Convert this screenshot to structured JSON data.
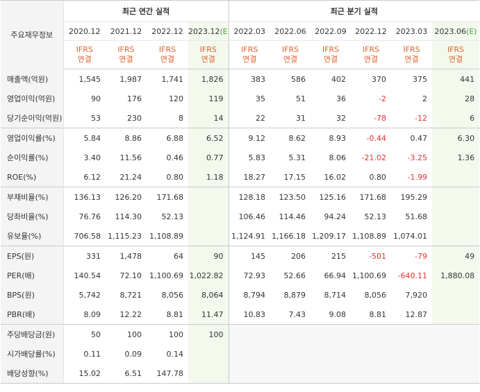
{
  "header": {
    "corner_label": "주요재무정보",
    "annual_title": "최근 연간 실적",
    "quarter_title": "최근 분기 실적",
    "est_mark": "(E)",
    "ifrs_top": "IFRS",
    "ifrs_bottom": "연결",
    "annual_periods": [
      "2020.12",
      "2021.12",
      "2022.12",
      "2023.12"
    ],
    "quarter_periods": [
      "2022.03",
      "2022.06",
      "2022.09",
      "2022.12",
      "2023.03",
      "2023.06"
    ]
  },
  "rows": [
    {
      "label": "매출액(억원)",
      "values": [
        "1,545",
        "1,987",
        "1,741",
        "1,826",
        "383",
        "586",
        "402",
        "370",
        "375",
        "441"
      ]
    },
    {
      "label": "영업이익(억원)",
      "values": [
        "90",
        "176",
        "120",
        "119",
        "35",
        "51",
        "36",
        "-2",
        "2",
        "28"
      ]
    },
    {
      "label": "당기순이익(억원)",
      "values": [
        "53",
        "230",
        "8",
        "14",
        "22",
        "31",
        "32",
        "-78",
        "-12",
        "6"
      ]
    },
    {
      "label": "영업이익률(%)",
      "values": [
        "5.84",
        "8.86",
        "6.88",
        "6.52",
        "9.12",
        "8.62",
        "8.93",
        "-0.44",
        "0.47",
        "6.30"
      ]
    },
    {
      "label": "순이익률(%)",
      "values": [
        "3.40",
        "11.56",
        "0.46",
        "0.77",
        "5.83",
        "5.31",
        "8.06",
        "-21.02",
        "-3.25",
        "1.36"
      ]
    },
    {
      "label": "ROE(%)",
      "values": [
        "6.12",
        "21.24",
        "0.80",
        "1.18",
        "18.27",
        "17.15",
        "16.02",
        "0.80",
        "-1.99",
        ""
      ]
    },
    {
      "label": "부채비율(%)",
      "values": [
        "136.13",
        "126.20",
        "171.68",
        "",
        "128.18",
        "123.50",
        "125.16",
        "171.68",
        "195.29",
        ""
      ]
    },
    {
      "label": "당좌비율(%)",
      "values": [
        "76.76",
        "114.30",
        "52.13",
        "",
        "106.46",
        "114.46",
        "94.24",
        "52.13",
        "51.68",
        ""
      ]
    },
    {
      "label": "유보율(%)",
      "values": [
        "706.58",
        "1,115.23",
        "1,108.89",
        "",
        "1,124.91",
        "1,166.18",
        "1,209.17",
        "1,108.89",
        "1,074.01",
        ""
      ]
    },
    {
      "label": "EPS(원)",
      "values": [
        "331",
        "1,478",
        "64",
        "90",
        "145",
        "206",
        "215",
        "-501",
        "-79",
        "49"
      ]
    },
    {
      "label": "PER(배)",
      "values": [
        "140.54",
        "72.10",
        "1,100.69",
        "1,022.82",
        "72.93",
        "52.66",
        "66.94",
        "1,100.69",
        "-640.11",
        "1,880.08"
      ]
    },
    {
      "label": "BPS(원)",
      "values": [
        "5,742",
        "8,721",
        "8,056",
        "8,064",
        "8,794",
        "8,879",
        "8,714",
        "8,056",
        "7,920",
        ""
      ]
    },
    {
      "label": "PBR(배)",
      "values": [
        "8.09",
        "12.22",
        "8.81",
        "11.47",
        "10.83",
        "7.43",
        "9.08",
        "8.81",
        "12.87",
        ""
      ]
    },
    {
      "label": "주당배당금(원)",
      "values": [
        "50",
        "100",
        "100",
        "100",
        "",
        "",
        "",
        "",
        "",
        ""
      ]
    },
    {
      "label": "시가배당률(%)",
      "values": [
        "0.11",
        "0.09",
        "0.14",
        "",
        "",
        "",
        "",
        "",
        "",
        ""
      ]
    },
    {
      "label": "배당성향(%)",
      "values": [
        "15.02",
        "6.51",
        "147.78",
        "",
        "",
        "",
        "",
        "",
        "",
        ""
      ]
    }
  ]
}
